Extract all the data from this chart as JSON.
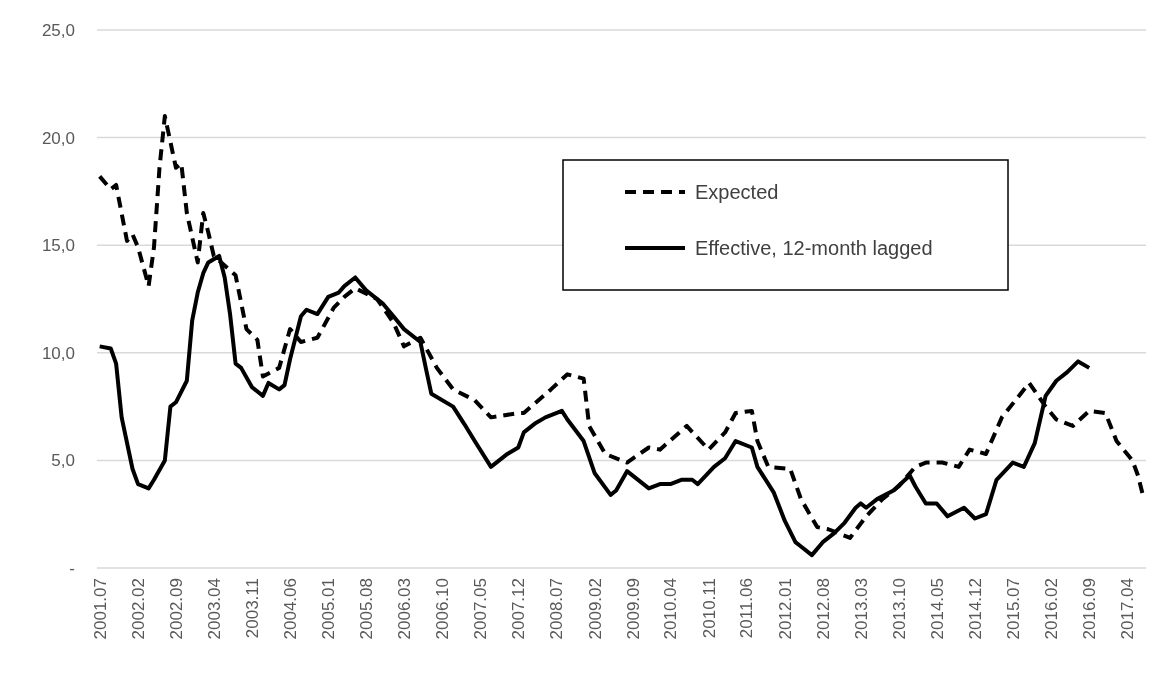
{
  "chart_data": {
    "type": "line",
    "xlim": [
      "2001-06-16",
      "2017-07-16"
    ],
    "ylim": [
      0,
      25
    ],
    "yticks": [
      {
        "value": 0,
        "label": "-"
      },
      {
        "value": 5,
        "label": "5,0"
      },
      {
        "value": 10,
        "label": "10,0"
      },
      {
        "value": 15,
        "label": "15,0"
      },
      {
        "value": 20,
        "label": "20,0"
      },
      {
        "value": 25,
        "label": "25,0"
      }
    ],
    "xticks": [
      {
        "value": "2001-07",
        "label": "2001.07"
      },
      {
        "value": "2002-02",
        "label": "2002.02"
      },
      {
        "value": "2002-09",
        "label": "2002.09"
      },
      {
        "value": "2003-04",
        "label": "2003.04"
      },
      {
        "value": "2003-11",
        "label": "2003.11"
      },
      {
        "value": "2004-06",
        "label": "2004.06"
      },
      {
        "value": "2005-01",
        "label": "2005.01"
      },
      {
        "value": "2005-08",
        "label": "2005.08"
      },
      {
        "value": "2006-03",
        "label": "2006.03"
      },
      {
        "value": "2006-10",
        "label": "2006.10"
      },
      {
        "value": "2007-05",
        "label": "2007.05"
      },
      {
        "value": "2007-12",
        "label": "2007.12"
      },
      {
        "value": "2008-07",
        "label": "2008.07"
      },
      {
        "value": "2009-02",
        "label": "2009.02"
      },
      {
        "value": "2009-09",
        "label": "2009.09"
      },
      {
        "value": "2010-04",
        "label": "2010.04"
      },
      {
        "value": "2010-11",
        "label": "2010.11"
      },
      {
        "value": "2011-06",
        "label": "2011.06"
      },
      {
        "value": "2012-01",
        "label": "2012.01"
      },
      {
        "value": "2012-08",
        "label": "2012.08"
      },
      {
        "value": "2013-03",
        "label": "2013.03"
      },
      {
        "value": "2013-10",
        "label": "2013.10"
      },
      {
        "value": "2014-05",
        "label": "2014.05"
      },
      {
        "value": "2014-12",
        "label": "2014.12"
      },
      {
        "value": "2015-07",
        "label": "2015.07"
      },
      {
        "value": "2016-02",
        "label": "2016.02"
      },
      {
        "value": "2016-09",
        "label": "2016.09"
      },
      {
        "value": "2017-04",
        "label": "2017.04"
      }
    ],
    "grid": "y",
    "legend": "top right",
    "series": [
      {
        "name": "Expected",
        "color": "#000000",
        "line_style": "dashed",
        "x": [
          "2001-07",
          "2001-09",
          "2001-10",
          "2001-12",
          "2002-01",
          "2002-02",
          "2002-04",
          "2002-05",
          "2002-06",
          "2002-07",
          "2002-09",
          "2002-10",
          "2002-11",
          "2003-01",
          "2003-02",
          "2003-03",
          "2003-04",
          "2003-08",
          "2003-10",
          "2003-12",
          "2004-01",
          "2004-04",
          "2004-06",
          "2004-08",
          "2004-11",
          "2005-02",
          "2005-04",
          "2005-06",
          "2005-10",
          "2006-01",
          "2006-03",
          "2006-06",
          "2006-09",
          "2006-12",
          "2007-04",
          "2007-07",
          "2007-12",
          "2008-01",
          "2008-06",
          "2008-09",
          "2008-12",
          "2009-01",
          "2009-04",
          "2009-08",
          "2009-12",
          "2010-02",
          "2010-07",
          "2010-11",
          "2011-02",
          "2011-04",
          "2011-07",
          "2011-08",
          "2011-10",
          "2012-02",
          "2012-04",
          "2012-07",
          "2012-09",
          "2013-01",
          "2013-04",
          "2013-07",
          "2013-10",
          "2014-01",
          "2014-03",
          "2014-06",
          "2014-09",
          "2014-11",
          "2015-02",
          "2015-05",
          "2015-10",
          "2016-01",
          "2016-03",
          "2016-06",
          "2016-09",
          "2016-12",
          "2017-02",
          "2017-05",
          "2017-06",
          "2017-07"
        ],
        "values": [
          18.2,
          17.6,
          17.8,
          15.2,
          15.5,
          14.9,
          13.1,
          14.9,
          18.6,
          21.0,
          18.6,
          18.8,
          16.5,
          14.2,
          16.5,
          15.6,
          14.5,
          13.6,
          11.1,
          10.6,
          8.9,
          9.3,
          11.1,
          10.5,
          10.7,
          12.1,
          12.6,
          13.0,
          12.5,
          11.4,
          10.3,
          10.7,
          9.3,
          8.3,
          7.8,
          7.0,
          7.2,
          7.2,
          8.3,
          9.0,
          8.8,
          6.6,
          5.3,
          4.9,
          5.6,
          5.5,
          6.6,
          5.5,
          6.3,
          7.2,
          7.3,
          5.9,
          4.7,
          4.6,
          3.2,
          1.9,
          1.8,
          1.4,
          2.4,
          3.2,
          3.8,
          4.7,
          4.9,
          4.9,
          4.7,
          5.5,
          5.3,
          7.0,
          8.6,
          7.5,
          6.9,
          6.6,
          7.3,
          7.2,
          5.9,
          5.0,
          4.3,
          3.3
        ]
      },
      {
        "name": "Effective, 12-month lagged",
        "color": "#000000",
        "line_style": "solid",
        "x": [
          "2001-07",
          "2001-09",
          "2001-10",
          "2001-11",
          "2002-01",
          "2002-02",
          "2002-04",
          "2002-05",
          "2002-07",
          "2002-08",
          "2002-09",
          "2002-11",
          "2002-12",
          "2003-01",
          "2003-02",
          "2003-03",
          "2003-05",
          "2003-06",
          "2003-07",
          "2003-08",
          "2003-09",
          "2003-11",
          "2004-01",
          "2004-02",
          "2004-04",
          "2004-05",
          "2004-06",
          "2004-08",
          "2004-09",
          "2004-11",
          "2005-01",
          "2005-03",
          "2005-04",
          "2005-06",
          "2005-08",
          "2005-11",
          "2006-01",
          "2006-03",
          "2006-06",
          "2006-07",
          "2006-08",
          "2006-12",
          "2007-02",
          "2007-04",
          "2007-07",
          "2007-10",
          "2007-12",
          "2008-01",
          "2008-03",
          "2008-05",
          "2008-08",
          "2008-09",
          "2008-12",
          "2009-02",
          "2009-05",
          "2009-06",
          "2009-08",
          "2009-12",
          "2010-02",
          "2010-04",
          "2010-06",
          "2010-08",
          "2010-09",
          "2010-12",
          "2011-02",
          "2011-04",
          "2011-07",
          "2011-08",
          "2011-11",
          "2012-01",
          "2012-03",
          "2012-04",
          "2012-06",
          "2012-08",
          "2012-10",
          "2012-12",
          "2013-02",
          "2013-03",
          "2013-04",
          "2013-06",
          "2013-09",
          "2013-12",
          "2014-01",
          "2014-03",
          "2014-05",
          "2014-07",
          "2014-10",
          "2014-12",
          "2015-02",
          "2015-04",
          "2015-07",
          "2015-09",
          "2015-11",
          "2016-01",
          "2016-03",
          "2016-05",
          "2016-07",
          "2016-09"
        ],
        "values": [
          10.3,
          10.2,
          9.5,
          7.0,
          4.6,
          3.9,
          3.7,
          4.1,
          5.0,
          7.5,
          7.7,
          8.7,
          11.5,
          12.8,
          13.7,
          14.2,
          14.5,
          13.5,
          11.8,
          9.5,
          9.3,
          8.4,
          8.0,
          8.6,
          8.3,
          8.5,
          9.7,
          11.7,
          12.0,
          11.8,
          12.6,
          12.8,
          13.1,
          13.5,
          12.9,
          12.3,
          11.7,
          11.1,
          10.5,
          9.3,
          8.1,
          7.5,
          6.7,
          5.9,
          4.7,
          5.3,
          5.6,
          6.3,
          6.7,
          7.0,
          7.3,
          6.9,
          5.9,
          4.4,
          3.4,
          3.6,
          4.5,
          3.7,
          3.9,
          3.9,
          4.1,
          4.1,
          3.9,
          4.7,
          5.1,
          5.9,
          5.6,
          4.7,
          3.5,
          2.2,
          1.2,
          1.0,
          0.6,
          1.2,
          1.6,
          2.1,
          2.8,
          3.0,
          2.8,
          3.2,
          3.6,
          4.3,
          3.8,
          3.0,
          3.0,
          2.4,
          2.8,
          2.3,
          2.5,
          4.1,
          4.9,
          4.7,
          5.8,
          8.0,
          8.7,
          9.1,
          9.6,
          9.3
        ]
      }
    ]
  }
}
